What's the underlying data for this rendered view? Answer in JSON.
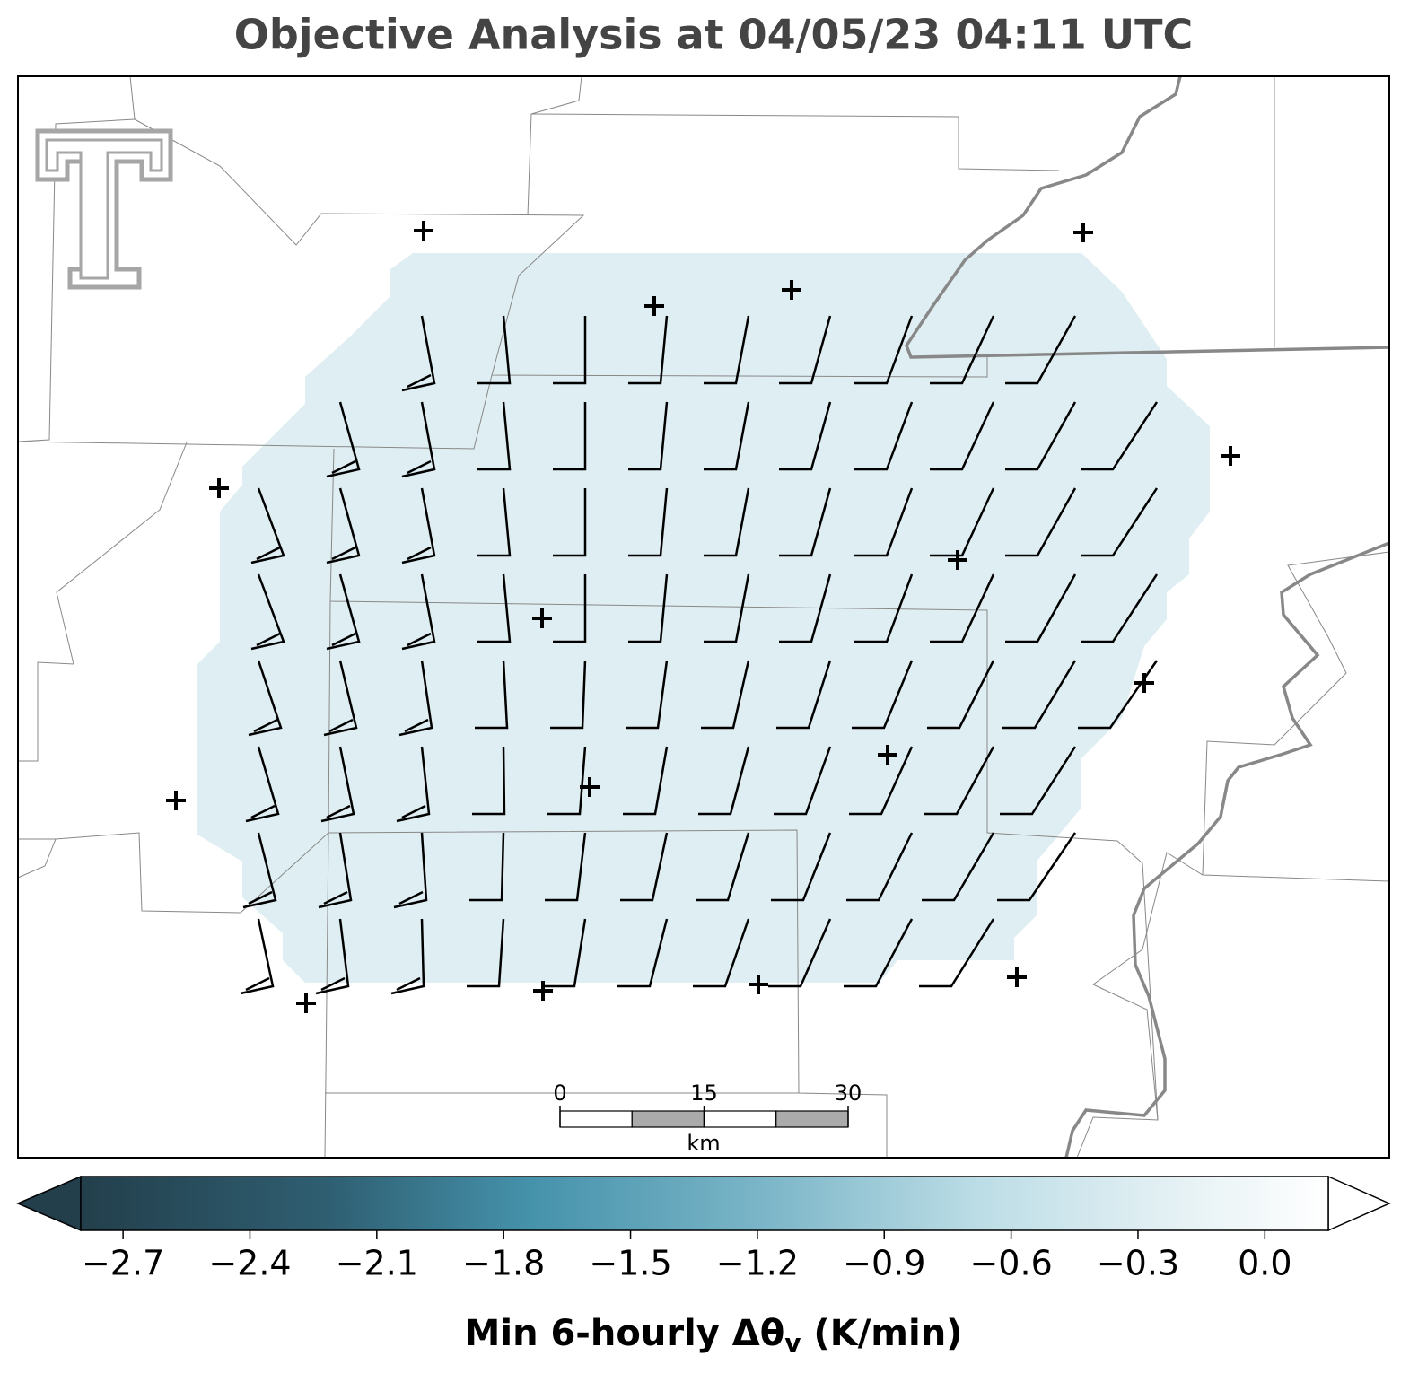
{
  "title": "Objective Analysis at 04/05/23 04:11 UTC",
  "colorbar": {
    "label_main": "Min 6-hourly Δθ",
    "label_sub": "v",
    "label_tail": " (K/min)",
    "clim": [
      -2.8,
      0.15
    ],
    "ticks": [
      {
        "value": -2.7,
        "label": "−2.7"
      },
      {
        "value": -2.4,
        "label": "−2.4"
      },
      {
        "value": -2.1,
        "label": "−2.1"
      },
      {
        "value": -1.8,
        "label": "−1.8"
      },
      {
        "value": -1.5,
        "label": "−1.5"
      },
      {
        "value": -1.2,
        "label": "−1.2"
      },
      {
        "value": -0.9,
        "label": "−0.9"
      },
      {
        "value": -0.6,
        "label": "−0.6"
      },
      {
        "value": -0.3,
        "label": "−0.3"
      },
      {
        "value": 0.0,
        "label": "0.0"
      }
    ]
  },
  "scale_bar": {
    "ticks": [
      0,
      15,
      30
    ],
    "unit": "km"
  }
}
